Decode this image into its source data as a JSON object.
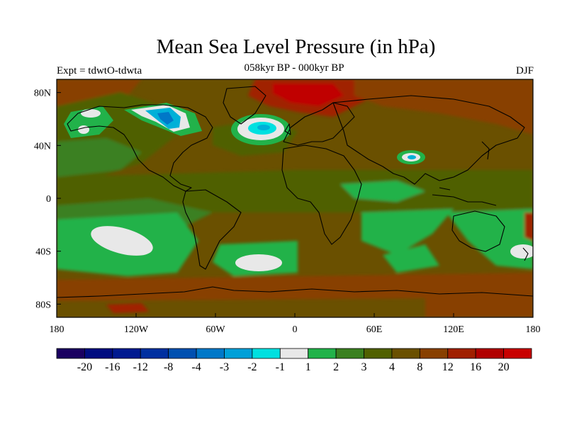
{
  "title": "Mean Sea Level Pressure (in hPa)",
  "subtitle": "058kyr BP - 000kyr BP",
  "experiment": "Expt = tdwtO-tdwta",
  "season": "DJF",
  "map": {
    "lat_labels": [
      "80N",
      "40N",
      "0",
      "40S",
      "80S"
    ],
    "lat_values": [
      80,
      40,
      0,
      -40,
      -80
    ],
    "lon_labels": [
      "180",
      "120W",
      "60W",
      "0",
      "60E",
      "120E",
      "180"
    ],
    "lon_values": [
      -180,
      -120,
      -60,
      0,
      60,
      120,
      180
    ],
    "background_color": "#6a5000",
    "colors": {
      "ocean_dark_olive": "#6a5000",
      "olive": "#506000",
      "dark_green": "#3a8020",
      "green": "#22b24a",
      "light_grey": "#e8e8e8",
      "cyan": "#00e0e0",
      "light_blue": "#00b0d8",
      "brown": "#884000",
      "dark_red": "#a02000",
      "red": "#c00000"
    }
  },
  "colorbar": {
    "labels": [
      "-20",
      "-16",
      "-12",
      "-8",
      "-4",
      "-3",
      "-2",
      "-1",
      "1",
      "2",
      "3",
      "4",
      "8",
      "12",
      "16",
      "20"
    ],
    "colors": [
      "#1a0060",
      "#000d80",
      "#001a90",
      "#0030a0",
      "#0050b0",
      "#0078c8",
      "#00a0d8",
      "#00e0e0",
      "#e8e8e8",
      "#22b24a",
      "#3a8020",
      "#506000",
      "#6a5000",
      "#884000",
      "#a02000",
      "#b00000",
      "#c80000"
    ]
  }
}
